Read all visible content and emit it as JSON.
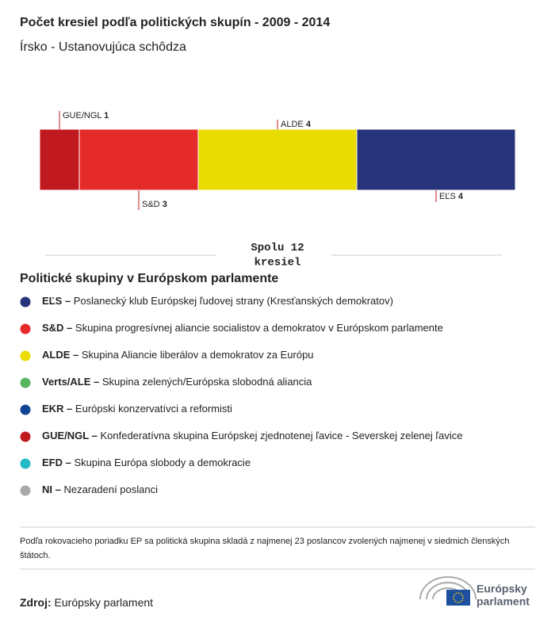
{
  "chart_data": {
    "type": "stacked-bar",
    "title": "Počet kresiel podľa politických skupín - 2009 - 2014",
    "subtitle": "Írsko - Ustanovujúca schôdza",
    "categories": [
      "GUE/NGL",
      "S&D",
      "ALDE",
      "EĽS"
    ],
    "values": [
      1,
      3,
      4,
      4
    ],
    "colors": [
      "#c0191f",
      "#e42b2a",
      "#e8dc00",
      "#283479"
    ],
    "total_prefix": "Spolu",
    "total": 12,
    "total_suffix": "kresiel",
    "legend_title": "Politické skupiny v Európskom parlamente",
    "legend": [
      {
        "abbr": "EĽS –",
        "text": "Poslanecký klub Európskej ľudovej strany (Kresťanských demokratov)",
        "color": "#283479"
      },
      {
        "abbr": "S&D –",
        "text": "Skupina progresívnej aliancie socialistov a demokratov v Európskom parlamente",
        "color": "#e42b2a"
      },
      {
        "abbr": "ALDE –",
        "text": "Skupina Aliancie liberálov a demokratov za Európu",
        "color": "#e8dc00"
      },
      {
        "abbr": "Verts/ALE –",
        "text": "Skupina zelených/Európska slobodná aliancia",
        "color": "#57b45f"
      },
      {
        "abbr": "EKR –",
        "text": "Európski konzervatívci a reformisti",
        "color": "#0e4595"
      },
      {
        "abbr": "GUE/NGL –",
        "text": "Konfederatívna skupina Európskej zjednotenej ľavice - Severskej zelenej ľavice",
        "color": "#c0191f"
      },
      {
        "abbr": "EFD –",
        "text": "Skupina Európa slobody a demokracie",
        "color": "#23b9c6"
      },
      {
        "abbr": "NI –",
        "text": "Nezaradení poslanci",
        "color": "#a8a8a8"
      }
    ],
    "footnote": "Podľa rokovacieho poriadku EP sa politická skupina skladá z najmenej 23 poslancov zvolených najmenej v siedmich členských štátoch.",
    "source_label": "Zdroj:",
    "source": "Európsky parlament",
    "logo_line1": "Európsky",
    "logo_line2": "parlament"
  }
}
